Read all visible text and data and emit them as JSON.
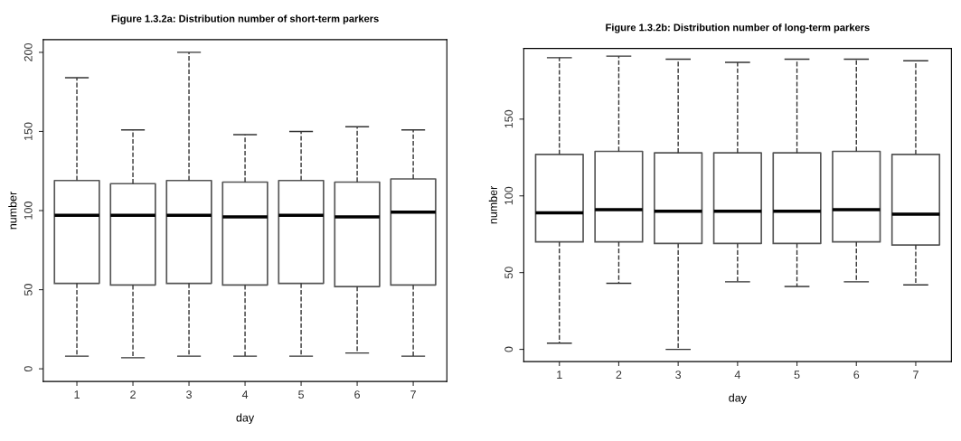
{
  "chart_data": [
    {
      "type": "box",
      "title": "Figure 1.3.2a: Distribution number of short-term parkers",
      "xlabel": "day",
      "ylabel": "number",
      "categories": [
        "1",
        "2",
        "3",
        "4",
        "5",
        "6",
        "7"
      ],
      "ylim": [
        -8,
        208
      ],
      "yticks": [
        0,
        50,
        100,
        150,
        200
      ],
      "grid": false,
      "line_style": "dashed",
      "boxes": [
        {
          "low": 8,
          "q1": 54,
          "median": 97,
          "q3": 119,
          "high": 184
        },
        {
          "low": 7,
          "q1": 53,
          "median": 97,
          "q3": 117,
          "high": 151
        },
        {
          "low": 8,
          "q1": 54,
          "median": 97,
          "q3": 119,
          "high": 200
        },
        {
          "low": 8,
          "q1": 53,
          "median": 96,
          "q3": 118,
          "high": 148
        },
        {
          "low": 8,
          "q1": 54,
          "median": 97,
          "q3": 119,
          "high": 150
        },
        {
          "low": 10,
          "q1": 52,
          "median": 96,
          "q3": 118,
          "high": 153
        },
        {
          "low": 8,
          "q1": 53,
          "median": 99,
          "q3": 120,
          "high": 151
        }
      ]
    },
    {
      "type": "box",
      "title": "Figure 1.3.2b: Distribution number of long-term parkers",
      "xlabel": "day",
      "ylabel": "number",
      "categories": [
        "1",
        "2",
        "3",
        "4",
        "5",
        "6",
        "7"
      ],
      "ylim": [
        -8,
        196
      ],
      "yticks": [
        0,
        50,
        100,
        150
      ],
      "grid": false,
      "line_style": "dashed",
      "boxes": [
        {
          "low": 4,
          "q1": 70,
          "median": 89,
          "q3": 127,
          "high": 190
        },
        {
          "low": 43,
          "q1": 70,
          "median": 91,
          "q3": 129,
          "high": 191
        },
        {
          "low": 0,
          "q1": 69,
          "median": 90,
          "q3": 128,
          "high": 189
        },
        {
          "low": 44,
          "q1": 69,
          "median": 90,
          "q3": 128,
          "high": 187
        },
        {
          "low": 41,
          "q1": 69,
          "median": 90,
          "q3": 128,
          "high": 189
        },
        {
          "low": 44,
          "q1": 70,
          "median": 91,
          "q3": 129,
          "high": 189
        },
        {
          "low": 42,
          "q1": 68,
          "median": 88,
          "q3": 127,
          "high": 188
        }
      ]
    }
  ]
}
